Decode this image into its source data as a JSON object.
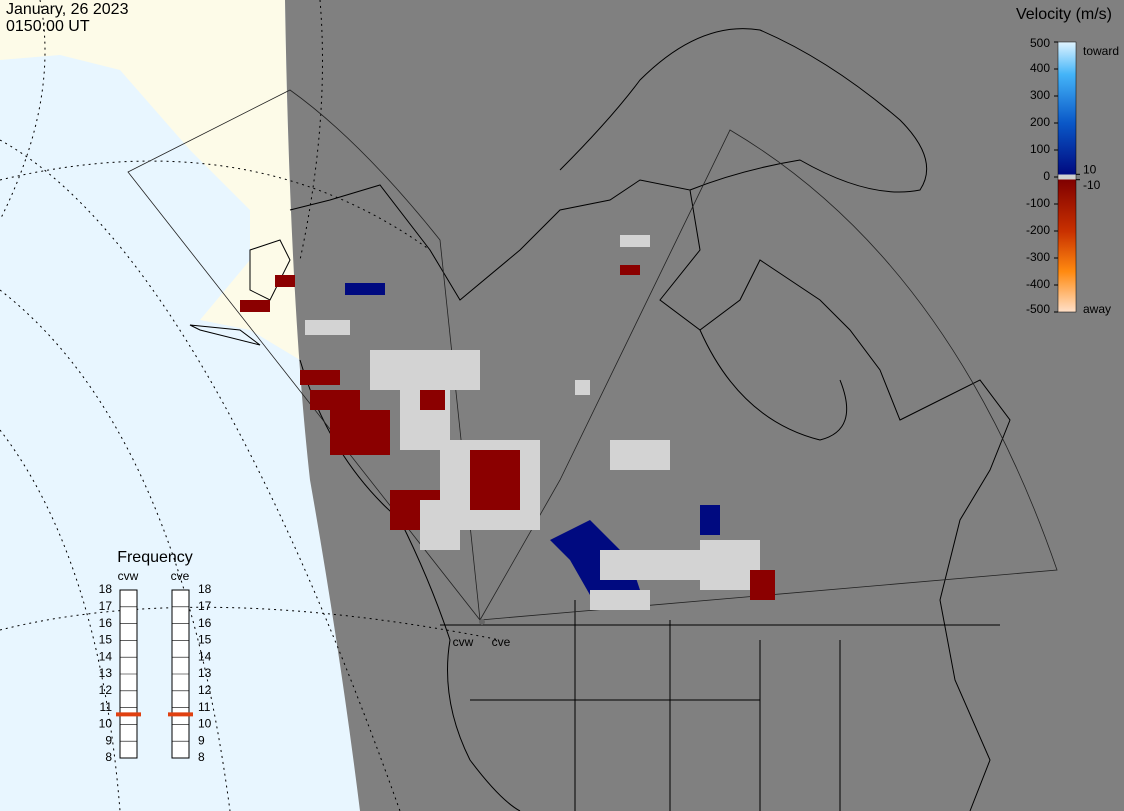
{
  "header": {
    "date": "January, 26 2023",
    "time": "0150:00 UT"
  },
  "colorbar": {
    "title": "Velocity (m/s)",
    "lim": [
      -500,
      500
    ],
    "ticks": [
      500,
      400,
      300,
      200,
      100,
      0,
      -100,
      -200,
      -300,
      -400,
      -500
    ],
    "inner_ticks": [
      10,
      -10
    ],
    "top_label": "toward",
    "bottom_label": "away"
  },
  "frequency": {
    "title": "Frequency",
    "lim": [
      8,
      18
    ],
    "ticks": [
      8,
      9,
      10,
      11,
      12,
      13,
      14,
      15,
      16,
      17,
      18
    ],
    "radars": [
      {
        "name": "cvw",
        "value": 10.6
      },
      {
        "name": "cve",
        "value": 10.6
      }
    ]
  },
  "radar_sites": [
    "cvw",
    "cve"
  ]
}
